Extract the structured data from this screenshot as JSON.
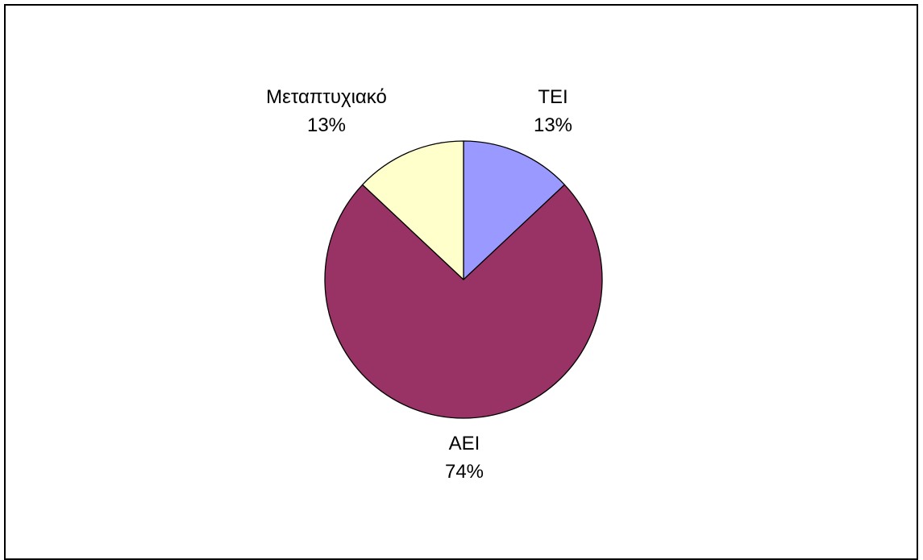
{
  "chart_data": {
    "type": "pie",
    "title": "",
    "slices": [
      {
        "label": "ΤΕΙ",
        "percent_label": "13%",
        "value": 13,
        "color": "#9999FF"
      },
      {
        "label": "ΑΕΙ",
        "percent_label": "74%",
        "value": 74,
        "color": "#993366"
      },
      {
        "label": "Μεταπτυχιακό",
        "percent_label": "13%",
        "value": 13,
        "color": "#FFFFCC"
      }
    ],
    "start_angle_deg": 0,
    "direction": "clockwise",
    "legend": "none",
    "slice_border_color": "#000000"
  }
}
